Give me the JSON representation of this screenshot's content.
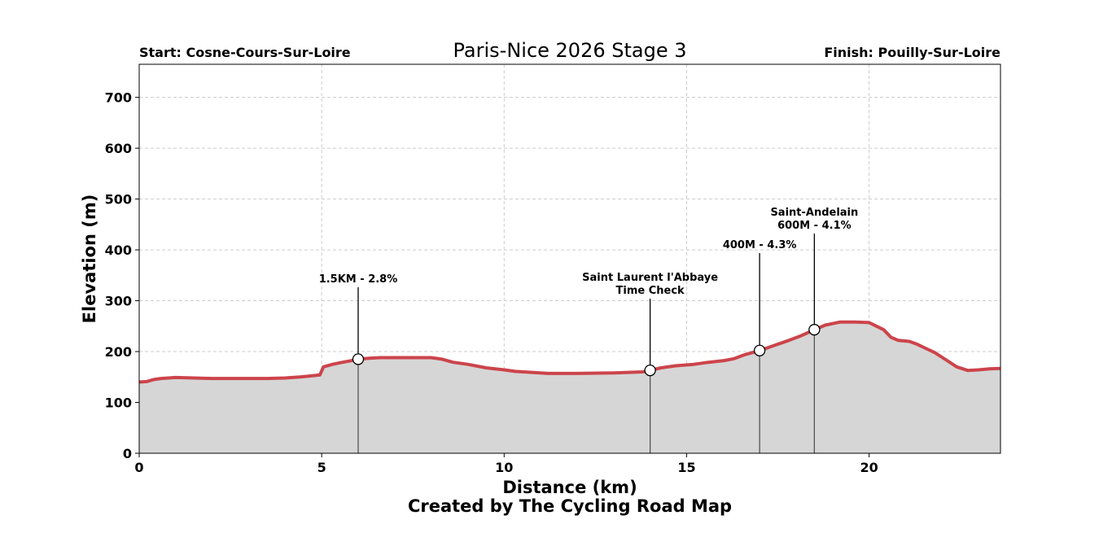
{
  "chart_data": {
    "type": "area",
    "title": "Paris-Nice 2026 Stage 3",
    "start_label": "Start: Cosne-Cours-Sur-Loire",
    "finish_label": "Finish: Pouilly-Sur-Loire",
    "xlabel": "Distance (km)",
    "ylabel": "Elevation (m)",
    "footer": "Created by The Cycling Road Map",
    "xlim": [
      0,
      23.6
    ],
    "ylim": [
      0,
      765
    ],
    "xticks": [
      0,
      5,
      10,
      15,
      20
    ],
    "yticks": [
      0,
      100,
      200,
      300,
      400,
      500,
      600,
      700
    ],
    "grid": true,
    "line_color": "#cc444b",
    "fill_color": "#d6d6d6",
    "profile": {
      "x": [
        0,
        0.2,
        0.4,
        0.6,
        0.8,
        1.0,
        1.5,
        2.0,
        2.5,
        3.0,
        3.5,
        4.0,
        4.4,
        4.7,
        4.95,
        5.05,
        5.3,
        5.5,
        5.8,
        6.0,
        6.3,
        6.6,
        7.0,
        7.5,
        8.0,
        8.3,
        8.6,
        9.0,
        9.5,
        10.0,
        10.3,
        10.8,
        11.2,
        12.0,
        13.0,
        13.8,
        14.0,
        14.3,
        14.7,
        15.2,
        15.6,
        16.0,
        16.3,
        16.6,
        17.0,
        17.4,
        17.8,
        18.1,
        18.5,
        18.8,
        19.2,
        19.6,
        20.0,
        20.2,
        20.4,
        20.6,
        20.8,
        21.1,
        21.3,
        21.5,
        21.8,
        22.1,
        22.4,
        22.7,
        23.0,
        23.3,
        23.6
      ],
      "y": [
        140,
        141,
        145,
        147,
        148,
        149,
        148,
        147,
        147,
        147,
        147,
        148,
        150,
        152,
        154,
        170,
        175,
        178,
        182,
        185,
        187,
        188,
        188,
        188,
        188,
        185,
        179,
        175,
        168,
        164,
        161,
        159,
        157,
        157,
        158,
        160,
        163,
        168,
        172,
        175,
        179,
        182,
        186,
        194,
        202,
        212,
        222,
        230,
        243,
        252,
        258,
        258,
        257,
        250,
        243,
        228,
        222,
        220,
        215,
        208,
        198,
        184,
        170,
        163,
        164,
        166,
        167
      ]
    },
    "markers": [
      {
        "x": 6.0,
        "y": 185,
        "label_lines": [
          "1.5KM - 2.8%"
        ]
      },
      {
        "x": 14.0,
        "y": 163,
        "label_lines": [
          "Saint Laurent l'Abbaye",
          "Time Check"
        ]
      },
      {
        "x": 17.0,
        "y": 202,
        "label_lines": [
          "400M - 4.3%"
        ]
      },
      {
        "x": 18.5,
        "y": 243,
        "label_lines": [
          "Saint-Andelain",
          "600M - 4.1%"
        ]
      }
    ]
  }
}
